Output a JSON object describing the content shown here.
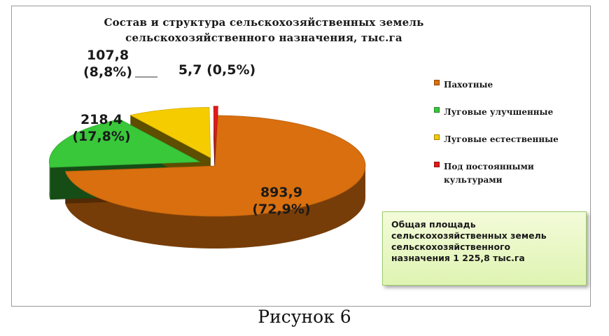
{
  "chart_data": {
    "type": "pie",
    "style": "3d-exploded",
    "title": [
      "Состав и структура сельскохозяйственных  земель",
      "сельскохозяйственного  назначения, тыс.га"
    ],
    "slices": [
      {
        "name": "Пахотные",
        "value": 893.9,
        "label_value": "893,9",
        "label_pct": "(72,9%)",
        "color": "#d96f0e"
      },
      {
        "name": "Луговые улучшенные",
        "value": 218.4,
        "label_value": "218,4",
        "label_pct": "(17,8%)",
        "color": "#39c83a"
      },
      {
        "name": "Луговые естественные",
        "value": 107.8,
        "label_value": "107,8",
        "label_pct": "(8,8%)",
        "color": "#f5cc00"
      },
      {
        "name": "Под постоянными культурами",
        "value": 5.7,
        "label_value": "5,7",
        "label_pct": "(0,5%)",
        "color": "#e01a1a"
      }
    ],
    "legend_position": "right",
    "total_note": "Общая площадь\nсельскохозяйственных земель\nсельскохозяйственного\nназначения 1 225,8 тыс.га"
  },
  "caption": "Рисунок 6"
}
